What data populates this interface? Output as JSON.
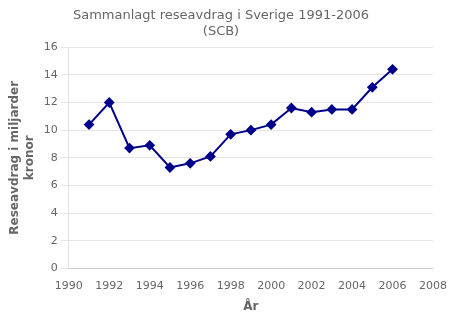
{
  "chart_data": {
    "type": "line",
    "title": "Sammanlagt reseavdrag i Sverige 1991-2006\n(SCB)",
    "x_label": "År",
    "y_label": "Reseavdrag i miljarder\nkronor",
    "x": [
      1991,
      1992,
      1993,
      1994,
      1995,
      1996,
      1997,
      1998,
      1999,
      2000,
      2001,
      2002,
      2003,
      2004,
      2005,
      2006
    ],
    "values": [
      10.4,
      12.0,
      8.7,
      8.9,
      7.3,
      7.6,
      8.1,
      9.7,
      10.0,
      10.4,
      11.6,
      11.3,
      11.5,
      11.5,
      13.1,
      14.4
    ],
    "color": "#00008B",
    "marker": "diamond",
    "xlim": [
      1990,
      2008
    ],
    "ylim": [
      0,
      16
    ],
    "xticks": [
      1990,
      1992,
      1994,
      1996,
      1998,
      2000,
      2002,
      2004,
      2006,
      2008
    ],
    "yticks": [
      0,
      2,
      4,
      6,
      8,
      10,
      12,
      14,
      16
    ],
    "grid": "y"
  }
}
